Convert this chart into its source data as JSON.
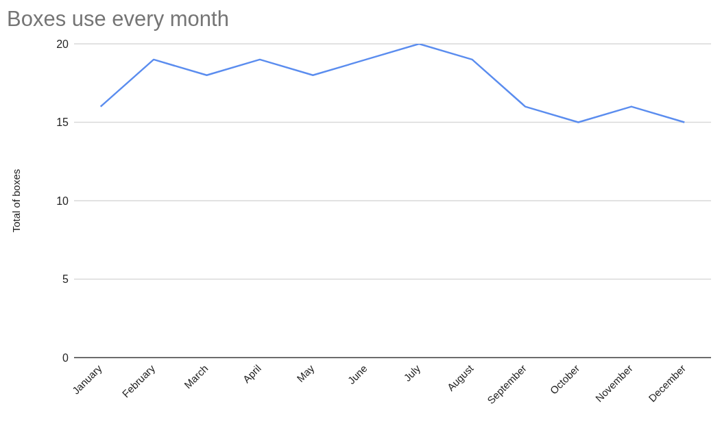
{
  "chart_data": {
    "type": "line",
    "title": "Boxes use every month",
    "ylabel": "Total of boxes",
    "categories": [
      "January",
      "February",
      "March",
      "April",
      "May",
      "June",
      "July",
      "August",
      "September",
      "October",
      "November",
      "December"
    ],
    "series": [
      {
        "color": "#5b8def",
        "values": [
          16,
          19,
          18,
          19,
          18,
          19,
          20,
          19,
          16,
          15,
          16,
          15
        ]
      }
    ],
    "ylim": [
      0,
      20
    ],
    "yticks": [
      0,
      5,
      10,
      15,
      20
    ],
    "grid": "y",
    "legend": false,
    "marker": "none",
    "line_style": "solid"
  }
}
